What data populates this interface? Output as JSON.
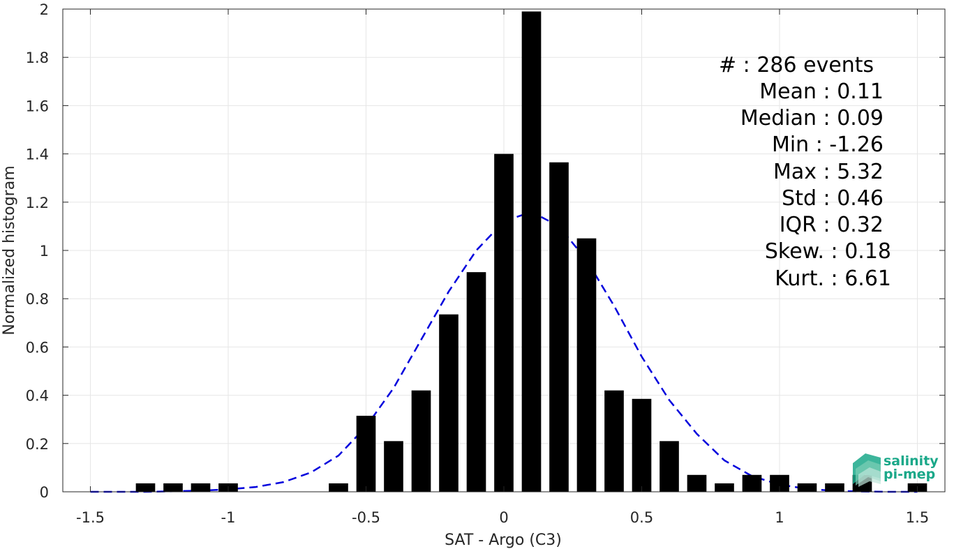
{
  "chart_data": {
    "type": "bar",
    "xlabel": "SAT - Argo (C3)",
    "ylabel": "Normalized histogram",
    "xlim": [
      -1.6,
      1.6
    ],
    "ylim": [
      0,
      2
    ],
    "xticks": [
      -1.5,
      -1,
      -0.5,
      0,
      0.5,
      1,
      1.5
    ],
    "xtick_labels": [
      "-1.5",
      "-1",
      "-0.5",
      "0",
      "0.5",
      "1",
      "1.5"
    ],
    "yticks": [
      0,
      0.2,
      0.4,
      0.6,
      0.8,
      1,
      1.2,
      1.4,
      1.6,
      1.8,
      2
    ],
    "ytick_labels": [
      "0",
      "0.2",
      "0.4",
      "0.6",
      "0.8",
      "1",
      "1.2",
      "1.4",
      "1.6",
      "1.8",
      "2"
    ],
    "grid": true,
    "bar_color": "#000000",
    "bars": {
      "x": [
        -1.3,
        -1.2,
        -1.1,
        -1.0,
        -0.6,
        -0.5,
        -0.4,
        -0.3,
        -0.2,
        -0.1,
        0.0,
        0.1,
        0.2,
        0.3,
        0.4,
        0.5,
        0.6,
        0.7,
        0.8,
        0.9,
        1.0,
        1.1,
        1.2,
        1.3,
        1.5
      ],
      "values": [
        0.035,
        0.035,
        0.035,
        0.035,
        0.035,
        0.315,
        0.21,
        0.42,
        0.735,
        0.91,
        1.4,
        1.99,
        1.365,
        1.05,
        0.42,
        0.385,
        0.21,
        0.07,
        0.035,
        0.07,
        0.07,
        0.035,
        0.035,
        0.07,
        0.035
      ]
    },
    "fit_curve": {
      "color": "#0000dd",
      "style": "dashed",
      "x": [
        -1.5,
        -1.4,
        -1.3,
        -1.2,
        -1.1,
        -1.0,
        -0.9,
        -0.8,
        -0.7,
        -0.6,
        -0.5,
        -0.4,
        -0.3,
        -0.2,
        -0.1,
        0.0,
        0.1,
        0.2,
        0.3,
        0.4,
        0.5,
        0.6,
        0.7,
        0.8,
        0.9,
        1.0,
        1.1,
        1.2,
        1.3,
        1.4,
        1.5
      ],
      "y": [
        0.0,
        0.0,
        0.0,
        0.002,
        0.005,
        0.01,
        0.02,
        0.04,
        0.08,
        0.15,
        0.27,
        0.43,
        0.63,
        0.83,
        1.0,
        1.12,
        1.16,
        1.1,
        0.96,
        0.77,
        0.56,
        0.38,
        0.24,
        0.13,
        0.065,
        0.03,
        0.012,
        0.004,
        0.001,
        0.0,
        0.0
      ]
    },
    "annotations": [
      "#  : 286 events",
      "Mean : 0.11",
      "Median : 0.09",
      "Min : -1.26",
      "Max : 5.32",
      "Std : 0.46",
      "IQR : 0.32",
      "Skew. : 0.18",
      "Kurt. : 6.61"
    ]
  },
  "logo": {
    "line1": "salinity",
    "line2": "pi-mep",
    "color": "#1aa889"
  }
}
